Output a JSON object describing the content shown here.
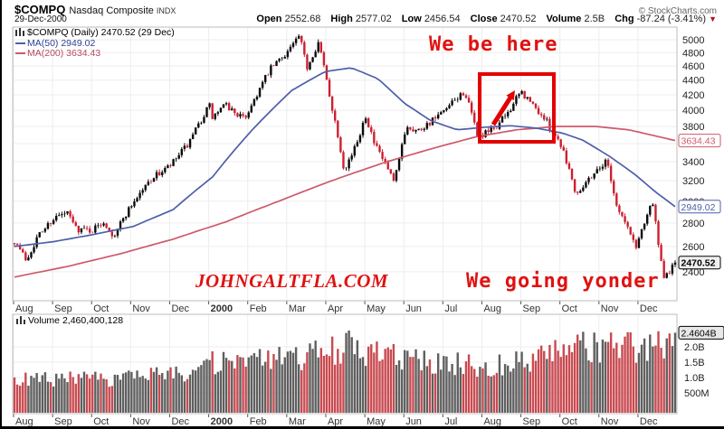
{
  "header": {
    "symbol": "$COMPQ",
    "name": "Nasdaq Composite",
    "type": "INDX",
    "copyright": "© StockCharts.com",
    "date": "29-Dec-2000",
    "quote": [
      {
        "label": "Open",
        "value": "2552.68"
      },
      {
        "label": "High",
        "value": "2577.02"
      },
      {
        "label": "Low",
        "value": "2456.54"
      },
      {
        "label": "Close",
        "value": "2470.52"
      },
      {
        "label": "Volume",
        "value": "2.5B"
      },
      {
        "label": "Chg",
        "value": "-87.24 (-3.41%)"
      }
    ],
    "chg_arrow": "▼"
  },
  "legend": {
    "main": "$COMPQ (Daily) 2470.52 (29 Dec)",
    "ma50": "MA(50) 2949.02",
    "ma200": "MA(200) 3634.43"
  },
  "volume_legend": "Volume 2,460,400,128",
  "annotations": {
    "here": "We be here",
    "yonder": "We going yonder",
    "watermark": "JOHNGALTFLA.COM"
  },
  "chart_data": {
    "type": "candlestick",
    "title": "$COMPQ (Daily) 2470.52 (29 Dec)",
    "date_range": "Aug 1999 - Dec 2000",
    "y_scale": "log",
    "y_ticks": [
      5000,
      4800,
      4600,
      4400,
      4200,
      4000,
      3800,
      3600,
      3400,
      3200,
      3000,
      2800,
      2600,
      2400
    ],
    "x_months": [
      "Aug",
      "Sep",
      "Oct",
      "Nov",
      "Dec",
      "2000",
      "Feb",
      "Mar",
      "Apr",
      "May",
      "Jun",
      "Jul",
      "Aug",
      "Sep",
      "Oct",
      "Nov",
      "Dec"
    ],
    "x_bold_index": 5,
    "ohlc_summary": {
      "open": 2552.68,
      "high": 2577.02,
      "low": 2456.54,
      "close": 2470.52,
      "volume": "2.5B",
      "chg": "-87.24 (-3.41%)"
    },
    "price_close_path": [
      [
        0,
        2648
      ],
      [
        0.018,
        2490
      ],
      [
        0.035,
        2680
      ],
      [
        0.059,
        2843
      ],
      [
        0.08,
        2887
      ],
      [
        0.094,
        2750
      ],
      [
        0.118,
        2736
      ],
      [
        0.135,
        2815
      ],
      [
        0.15,
        2689
      ],
      [
        0.177,
        2967
      ],
      [
        0.207,
        3221
      ],
      [
        0.236,
        3353
      ],
      [
        0.266,
        3620
      ],
      [
        0.295,
        4069
      ],
      [
        0.299,
        3901
      ],
      [
        0.319,
        4064
      ],
      [
        0.348,
        3887
      ],
      [
        0.387,
        4548
      ],
      [
        0.41,
        4784
      ],
      [
        0.431,
        5048
      ],
      [
        0.443,
        4583
      ],
      [
        0.46,
        4963
      ],
      [
        0.478,
        4148
      ],
      [
        0.499,
        3321
      ],
      [
        0.515,
        3539
      ],
      [
        0.525,
        3774
      ],
      [
        0.531,
        3958
      ],
      [
        0.545,
        3585
      ],
      [
        0.56,
        3390
      ],
      [
        0.575,
        3165
      ],
      [
        0.593,
        3813
      ],
      [
        0.61,
        3748
      ],
      [
        0.63,
        3860
      ],
      [
        0.649,
        3966
      ],
      [
        0.681,
        4246
      ],
      [
        0.702,
        3663
      ],
      [
        0.729,
        3789
      ],
      [
        0.745,
        3953
      ],
      [
        0.767,
        4234
      ],
      [
        0.802,
        3897
      ],
      [
        0.829,
        3569
      ],
      [
        0.85,
        3074
      ],
      [
        0.876,
        3272
      ],
      [
        0.897,
        3416
      ],
      [
        0.911,
        2966
      ],
      [
        0.941,
        2597
      ],
      [
        0.965,
        3015
      ],
      [
        0.982,
        2332
      ],
      [
        1,
        2470.52
      ]
    ],
    "ma50": {
      "label": "MA(50)",
      "last": 2949.02,
      "path": [
        [
          0,
          2600
        ],
        [
          0.06,
          2640
        ],
        [
          0.12,
          2700
        ],
        [
          0.18,
          2770
        ],
        [
          0.24,
          2920
        ],
        [
          0.3,
          3240
        ],
        [
          0.36,
          3760
        ],
        [
          0.42,
          4260
        ],
        [
          0.47,
          4520
        ],
        [
          0.51,
          4575
        ],
        [
          0.55,
          4420
        ],
        [
          0.59,
          4090
        ],
        [
          0.63,
          3870
        ],
        [
          0.67,
          3760
        ],
        [
          0.71,
          3790
        ],
        [
          0.75,
          3810
        ],
        [
          0.79,
          3780
        ],
        [
          0.83,
          3720
        ],
        [
          0.86,
          3640
        ],
        [
          0.9,
          3460
        ],
        [
          0.94,
          3260
        ],
        [
          0.97,
          3090
        ],
        [
          1,
          2949
        ]
      ]
    },
    "ma200": {
      "label": "MA(200)",
      "last": 3634.43,
      "path": [
        [
          0,
          2360
        ],
        [
          0.08,
          2440
        ],
        [
          0.16,
          2540
        ],
        [
          0.24,
          2660
        ],
        [
          0.32,
          2810
        ],
        [
          0.4,
          3000
        ],
        [
          0.48,
          3200
        ],
        [
          0.56,
          3390
        ],
        [
          0.64,
          3560
        ],
        [
          0.7,
          3680
        ],
        [
          0.76,
          3760
        ],
        [
          0.82,
          3800
        ],
        [
          0.88,
          3800
        ],
        [
          0.93,
          3760
        ],
        [
          1,
          3634.43
        ]
      ]
    },
    "volume_profile": [
      [
        0,
        0.9
      ],
      [
        0.06,
        0.95
      ],
      [
        0.12,
        0.93
      ],
      [
        0.18,
        1.0
      ],
      [
        0.24,
        1.1
      ],
      [
        0.295,
        1.45
      ],
      [
        0.35,
        1.5
      ],
      [
        0.4,
        1.6
      ],
      [
        0.45,
        1.7
      ],
      [
        0.5,
        2.05
      ],
      [
        0.54,
        1.8
      ],
      [
        0.58,
        1.65
      ],
      [
        0.62,
        1.5
      ],
      [
        0.66,
        1.45
      ],
      [
        0.7,
        1.4
      ],
      [
        0.74,
        1.45
      ],
      [
        0.78,
        1.6
      ],
      [
        0.82,
        1.8
      ],
      [
        0.86,
        1.95
      ],
      [
        0.9,
        2.0
      ],
      [
        0.94,
        2.05
      ],
      [
        0.97,
        1.95
      ],
      [
        1,
        2.46
      ]
    ],
    "volume_last": 2.4604,
    "volume_ticks": [
      {
        "label": "2.0B",
        "value": 2.0
      },
      {
        "label": "1.5B",
        "value": 1.5
      },
      {
        "label": "1.0B",
        "value": 1.0
      },
      {
        "label": "500M",
        "value": 0.5
      }
    ],
    "badges": {
      "close": "2470.52",
      "ma50": "2949.02",
      "ma200": "3634.43",
      "volume": "2.4604B"
    },
    "colors": {
      "up": "#0a0a0a",
      "down": "#cc2030",
      "vol_up": "#5f5f5f",
      "vol_down": "#c84a50",
      "ma50": "#4d5fa9",
      "ma200": "#cd5a6a",
      "grid": "#ededed",
      "border": "#bcbcbc",
      "axis_text": "#222",
      "month_text": "#333",
      "badge_close_bg": "#f0f0f0",
      "annotation": "#e30000"
    }
  }
}
